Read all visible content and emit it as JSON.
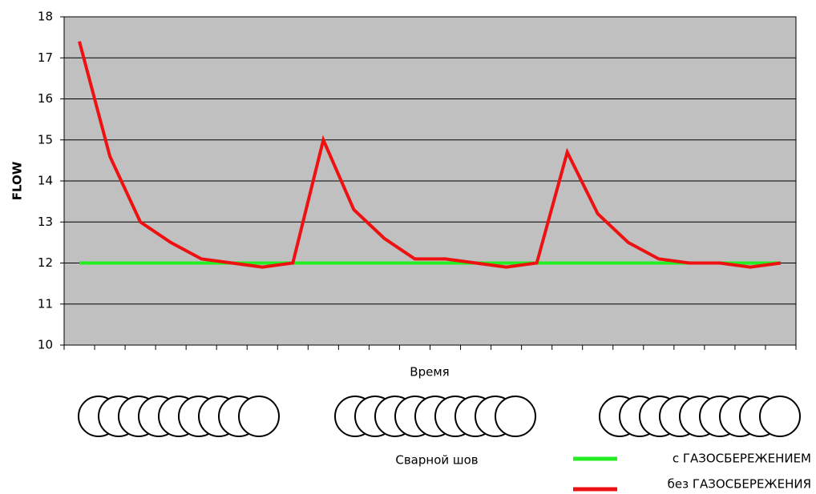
{
  "chart_data": {
    "type": "line",
    "y_label": "FLOW",
    "x_label": "Время",
    "annotation": "Сварной шов",
    "categories": [
      null,
      null,
      null,
      null,
      null,
      null,
      null,
      null,
      null,
      null,
      null,
      null,
      null,
      null,
      null,
      null,
      null,
      null,
      null,
      null,
      null,
      null,
      null,
      null
    ],
    "series": [
      {
        "name": "с ГАЗОСБЕРЕЖЕНИЕМ",
        "color": "#22ee22",
        "values": [
          12,
          12,
          12,
          12,
          12,
          12,
          12,
          12,
          12,
          12,
          12,
          12,
          12,
          12,
          12,
          12,
          12,
          12,
          12,
          12,
          12,
          12,
          12,
          12
        ]
      },
      {
        "name": "без ГАЗОСБЕРЕЖЕНИЯ",
        "color": "#ee1111",
        "values": [
          17.4,
          14.6,
          13.0,
          12.5,
          12.1,
          12.0,
          11.9,
          12.0,
          15.0,
          13.3,
          12.6,
          12.1,
          12.1,
          12.0,
          11.9,
          12.0,
          14.7,
          13.2,
          12.5,
          12.1,
          12.0,
          12.0,
          11.9,
          12.0
        ]
      }
    ],
    "ylim": [
      10,
      18
    ],
    "yticks": [
      10,
      11,
      12,
      13,
      14,
      15,
      16,
      17,
      18
    ],
    "grid": true
  }
}
